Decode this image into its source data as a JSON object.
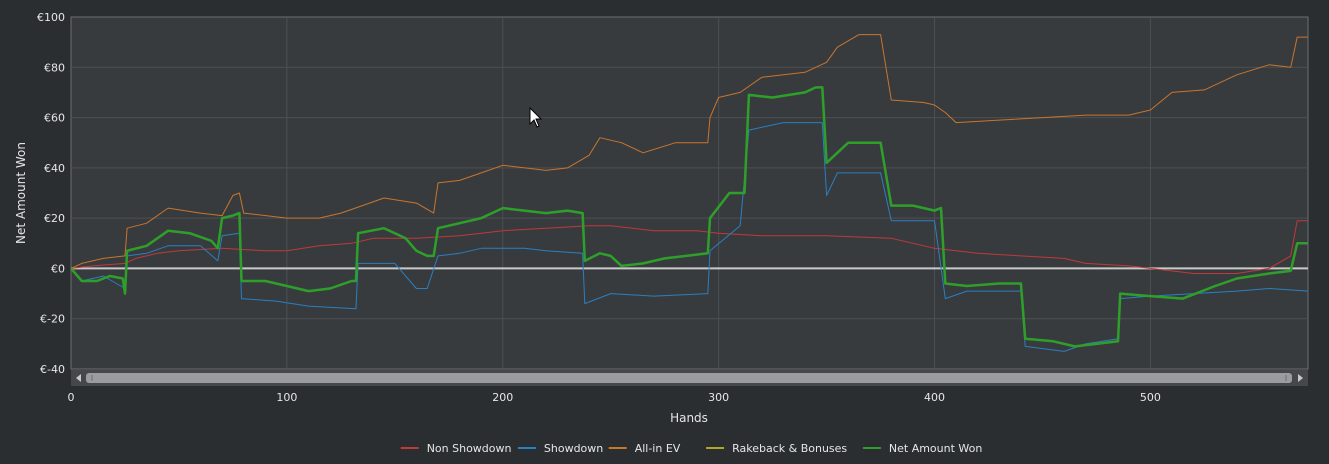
{
  "chart_data": {
    "type": "line",
    "xlabel": "Hands",
    "ylabel": "Net Amount Won",
    "xlim": [
      0,
      573
    ],
    "ylim": [
      -40,
      100
    ],
    "x_ticks": [
      0,
      100,
      200,
      300,
      400,
      500
    ],
    "x_tick_labels": [
      "0",
      "100",
      "200",
      "300",
      "400",
      "500"
    ],
    "y_ticks": [
      -40,
      -20,
      0,
      20,
      40,
      60,
      80,
      100
    ],
    "y_tick_labels": [
      "€-40",
      "€-20",
      "€0",
      "€20",
      "€40",
      "€60",
      "€80",
      "€100"
    ],
    "grid": true,
    "legend": "bottom-center",
    "series": [
      {
        "name": "Non Showdown",
        "color": "#c0393b",
        "width": 1,
        "points": [
          [
            0,
            0
          ],
          [
            10,
            1
          ],
          [
            25,
            2
          ],
          [
            30,
            4
          ],
          [
            40,
            6
          ],
          [
            50,
            7
          ],
          [
            70,
            8
          ],
          [
            90,
            7
          ],
          [
            100,
            7
          ],
          [
            115,
            9
          ],
          [
            130,
            10
          ],
          [
            140,
            12
          ],
          [
            160,
            12
          ],
          [
            180,
            13
          ],
          [
            200,
            15
          ],
          [
            220,
            16
          ],
          [
            240,
            17
          ],
          [
            250,
            17
          ],
          [
            270,
            15
          ],
          [
            290,
            15
          ],
          [
            300,
            14
          ],
          [
            320,
            13
          ],
          [
            350,
            13
          ],
          [
            380,
            12
          ],
          [
            400,
            8
          ],
          [
            420,
            6
          ],
          [
            440,
            5
          ],
          [
            460,
            4
          ],
          [
            470,
            2
          ],
          [
            490,
            1
          ],
          [
            500,
            0
          ],
          [
            520,
            -2
          ],
          [
            540,
            -2
          ],
          [
            555,
            0
          ],
          [
            565,
            5
          ],
          [
            568,
            19
          ],
          [
            573,
            19
          ]
        ]
      },
      {
        "name": "Showdown",
        "color": "#2a7fc1",
        "width": 1,
        "points": [
          [
            0,
            0
          ],
          [
            5,
            -5
          ],
          [
            15,
            -3
          ],
          [
            25,
            -8
          ],
          [
            26,
            5
          ],
          [
            35,
            6
          ],
          [
            45,
            9
          ],
          [
            60,
            9
          ],
          [
            68,
            3
          ],
          [
            70,
            13
          ],
          [
            78,
            14
          ],
          [
            79,
            -12
          ],
          [
            95,
            -13
          ],
          [
            110,
            -15
          ],
          [
            132,
            -16
          ],
          [
            133,
            2
          ],
          [
            150,
            2
          ],
          [
            160,
            -8
          ],
          [
            165,
            -8
          ],
          [
            170,
            5
          ],
          [
            180,
            6
          ],
          [
            190,
            8
          ],
          [
            210,
            8
          ],
          [
            220,
            7
          ],
          [
            237,
            6
          ],
          [
            238,
            -14
          ],
          [
            250,
            -10
          ],
          [
            270,
            -11
          ],
          [
            295,
            -10
          ],
          [
            296,
            7
          ],
          [
            310,
            17
          ],
          [
            314,
            55
          ],
          [
            330,
            58
          ],
          [
            348,
            58
          ],
          [
            350,
            29
          ],
          [
            355,
            38
          ],
          [
            375,
            38
          ],
          [
            380,
            19
          ],
          [
            400,
            19
          ],
          [
            405,
            -12
          ],
          [
            415,
            -9
          ],
          [
            440,
            -9
          ],
          [
            442,
            -31
          ],
          [
            460,
            -33
          ],
          [
            470,
            -30
          ],
          [
            485,
            -28
          ],
          [
            486,
            -12
          ],
          [
            500,
            -11
          ],
          [
            520,
            -10
          ],
          [
            540,
            -9
          ],
          [
            555,
            -8
          ],
          [
            573,
            -9
          ]
        ]
      },
      {
        "name": "All-in EV",
        "color": "#c8752e",
        "width": 1,
        "points": [
          [
            0,
            0
          ],
          [
            5,
            2
          ],
          [
            15,
            4
          ],
          [
            25,
            5
          ],
          [
            26,
            16
          ],
          [
            35,
            18
          ],
          [
            45,
            24
          ],
          [
            60,
            22
          ],
          [
            70,
            21
          ],
          [
            75,
            29
          ],
          [
            78,
            30
          ],
          [
            80,
            22
          ],
          [
            100,
            20
          ],
          [
            115,
            20
          ],
          [
            125,
            22
          ],
          [
            135,
            25
          ],
          [
            145,
            28
          ],
          [
            160,
            26
          ],
          [
            168,
            22
          ],
          [
            170,
            34
          ],
          [
            180,
            35
          ],
          [
            190,
            38
          ],
          [
            200,
            41
          ],
          [
            220,
            39
          ],
          [
            230,
            40
          ],
          [
            240,
            45
          ],
          [
            245,
            52
          ],
          [
            255,
            50
          ],
          [
            265,
            46
          ],
          [
            280,
            50
          ],
          [
            295,
            50
          ],
          [
            296,
            60
          ],
          [
            300,
            68
          ],
          [
            310,
            70
          ],
          [
            320,
            76
          ],
          [
            340,
            78
          ],
          [
            350,
            82
          ],
          [
            355,
            88
          ],
          [
            365,
            93
          ],
          [
            375,
            93
          ],
          [
            380,
            67
          ],
          [
            395,
            66
          ],
          [
            400,
            65
          ],
          [
            405,
            62
          ],
          [
            410,
            58
          ],
          [
            430,
            59
          ],
          [
            450,
            60
          ],
          [
            470,
            61
          ],
          [
            490,
            61
          ],
          [
            500,
            63
          ],
          [
            510,
            70
          ],
          [
            525,
            71
          ],
          [
            540,
            77
          ],
          [
            555,
            81
          ],
          [
            565,
            80
          ],
          [
            568,
            92
          ],
          [
            573,
            92
          ]
        ]
      },
      {
        "name": "Rakeback & Bonuses",
        "color": "#b0a825",
        "width": 1.5,
        "points": []
      },
      {
        "name": "Net Amount Won",
        "color": "#2ea02a",
        "width": 2.5,
        "points": [
          [
            0,
            0
          ],
          [
            5,
            -5
          ],
          [
            12,
            -5
          ],
          [
            18,
            -3
          ],
          [
            24,
            -4
          ],
          [
            25,
            -10
          ],
          [
            26,
            7
          ],
          [
            35,
            9
          ],
          [
            40,
            12
          ],
          [
            45,
            15
          ],
          [
            55,
            14
          ],
          [
            65,
            11
          ],
          [
            68,
            8
          ],
          [
            70,
            20
          ],
          [
            75,
            21
          ],
          [
            78,
            22
          ],
          [
            79,
            -5
          ],
          [
            90,
            -5
          ],
          [
            100,
            -7
          ],
          [
            110,
            -9
          ],
          [
            120,
            -8
          ],
          [
            130,
            -5
          ],
          [
            132,
            -5
          ],
          [
            133,
            14
          ],
          [
            145,
            16
          ],
          [
            155,
            12
          ],
          [
            160,
            7
          ],
          [
            165,
            5
          ],
          [
            168,
            5
          ],
          [
            170,
            16
          ],
          [
            180,
            18
          ],
          [
            190,
            20
          ],
          [
            200,
            24
          ],
          [
            210,
            23
          ],
          [
            220,
            22
          ],
          [
            230,
            23
          ],
          [
            237,
            22
          ],
          [
            238,
            3
          ],
          [
            245,
            6
          ],
          [
            250,
            5
          ],
          [
            255,
            1
          ],
          [
            265,
            2
          ],
          [
            275,
            4
          ],
          [
            285,
            5
          ],
          [
            295,
            6
          ],
          [
            296,
            20
          ],
          [
            305,
            30
          ],
          [
            312,
            30
          ],
          [
            314,
            69
          ],
          [
            325,
            68
          ],
          [
            340,
            70
          ],
          [
            345,
            72
          ],
          [
            348,
            72
          ],
          [
            350,
            42
          ],
          [
            360,
            50
          ],
          [
            375,
            50
          ],
          [
            380,
            25
          ],
          [
            390,
            25
          ],
          [
            400,
            23
          ],
          [
            403,
            24
          ],
          [
            405,
            -6
          ],
          [
            415,
            -7
          ],
          [
            430,
            -6
          ],
          [
            440,
            -6
          ],
          [
            442,
            -28
          ],
          [
            455,
            -29
          ],
          [
            465,
            -31
          ],
          [
            475,
            -30
          ],
          [
            485,
            -29
          ],
          [
            486,
            -10
          ],
          [
            500,
            -11
          ],
          [
            515,
            -12
          ],
          [
            530,
            -7
          ],
          [
            540,
            -4
          ],
          [
            555,
            -2
          ],
          [
            565,
            -1
          ],
          [
            568,
            10
          ],
          [
            573,
            10
          ]
        ]
      }
    ]
  }
}
